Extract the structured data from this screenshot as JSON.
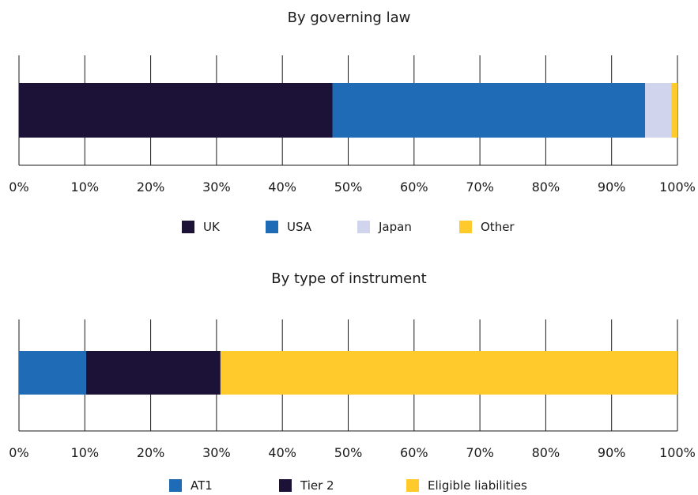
{
  "colors": {
    "navy": "#1c1238",
    "blue": "#1f6bb6",
    "lavender": "#d0d4ec",
    "yellow": "#ffca2b"
  },
  "chart_data": [
    {
      "type": "bar",
      "orientation": "horizontal-stacked-100",
      "title": "By governing law",
      "xlim": [
        0,
        100
      ],
      "ticks": [
        "0%",
        "10%",
        "20%",
        "30%",
        "40%",
        "50%",
        "60%",
        "70%",
        "80%",
        "90%",
        "100%"
      ],
      "grid": true,
      "legend_position": "bottom",
      "series": [
        {
          "name": "UK",
          "value": 47.6,
          "color": "#1c1238"
        },
        {
          "name": "USA",
          "value": 47.5,
          "color": "#1f6bb6"
        },
        {
          "name": "Japan",
          "value": 4.0,
          "color": "#d0d4ec"
        },
        {
          "name": "Other",
          "value": 0.9,
          "color": "#ffca2b"
        }
      ]
    },
    {
      "type": "bar",
      "orientation": "horizontal-stacked-100",
      "title": "By type of instrument",
      "xlim": [
        0,
        100
      ],
      "ticks": [
        "0%",
        "10%",
        "20%",
        "30%",
        "40%",
        "50%",
        "60%",
        "70%",
        "80%",
        "90%",
        "100%"
      ],
      "grid": true,
      "legend_position": "bottom",
      "series": [
        {
          "name": "AT1",
          "value": 10.2,
          "color": "#1f6bb6"
        },
        {
          "name": "Tier 2",
          "value": 20.4,
          "color": "#1c1238"
        },
        {
          "name": "Eligible liabilities",
          "value": 69.4,
          "color": "#ffca2b"
        }
      ]
    }
  ]
}
